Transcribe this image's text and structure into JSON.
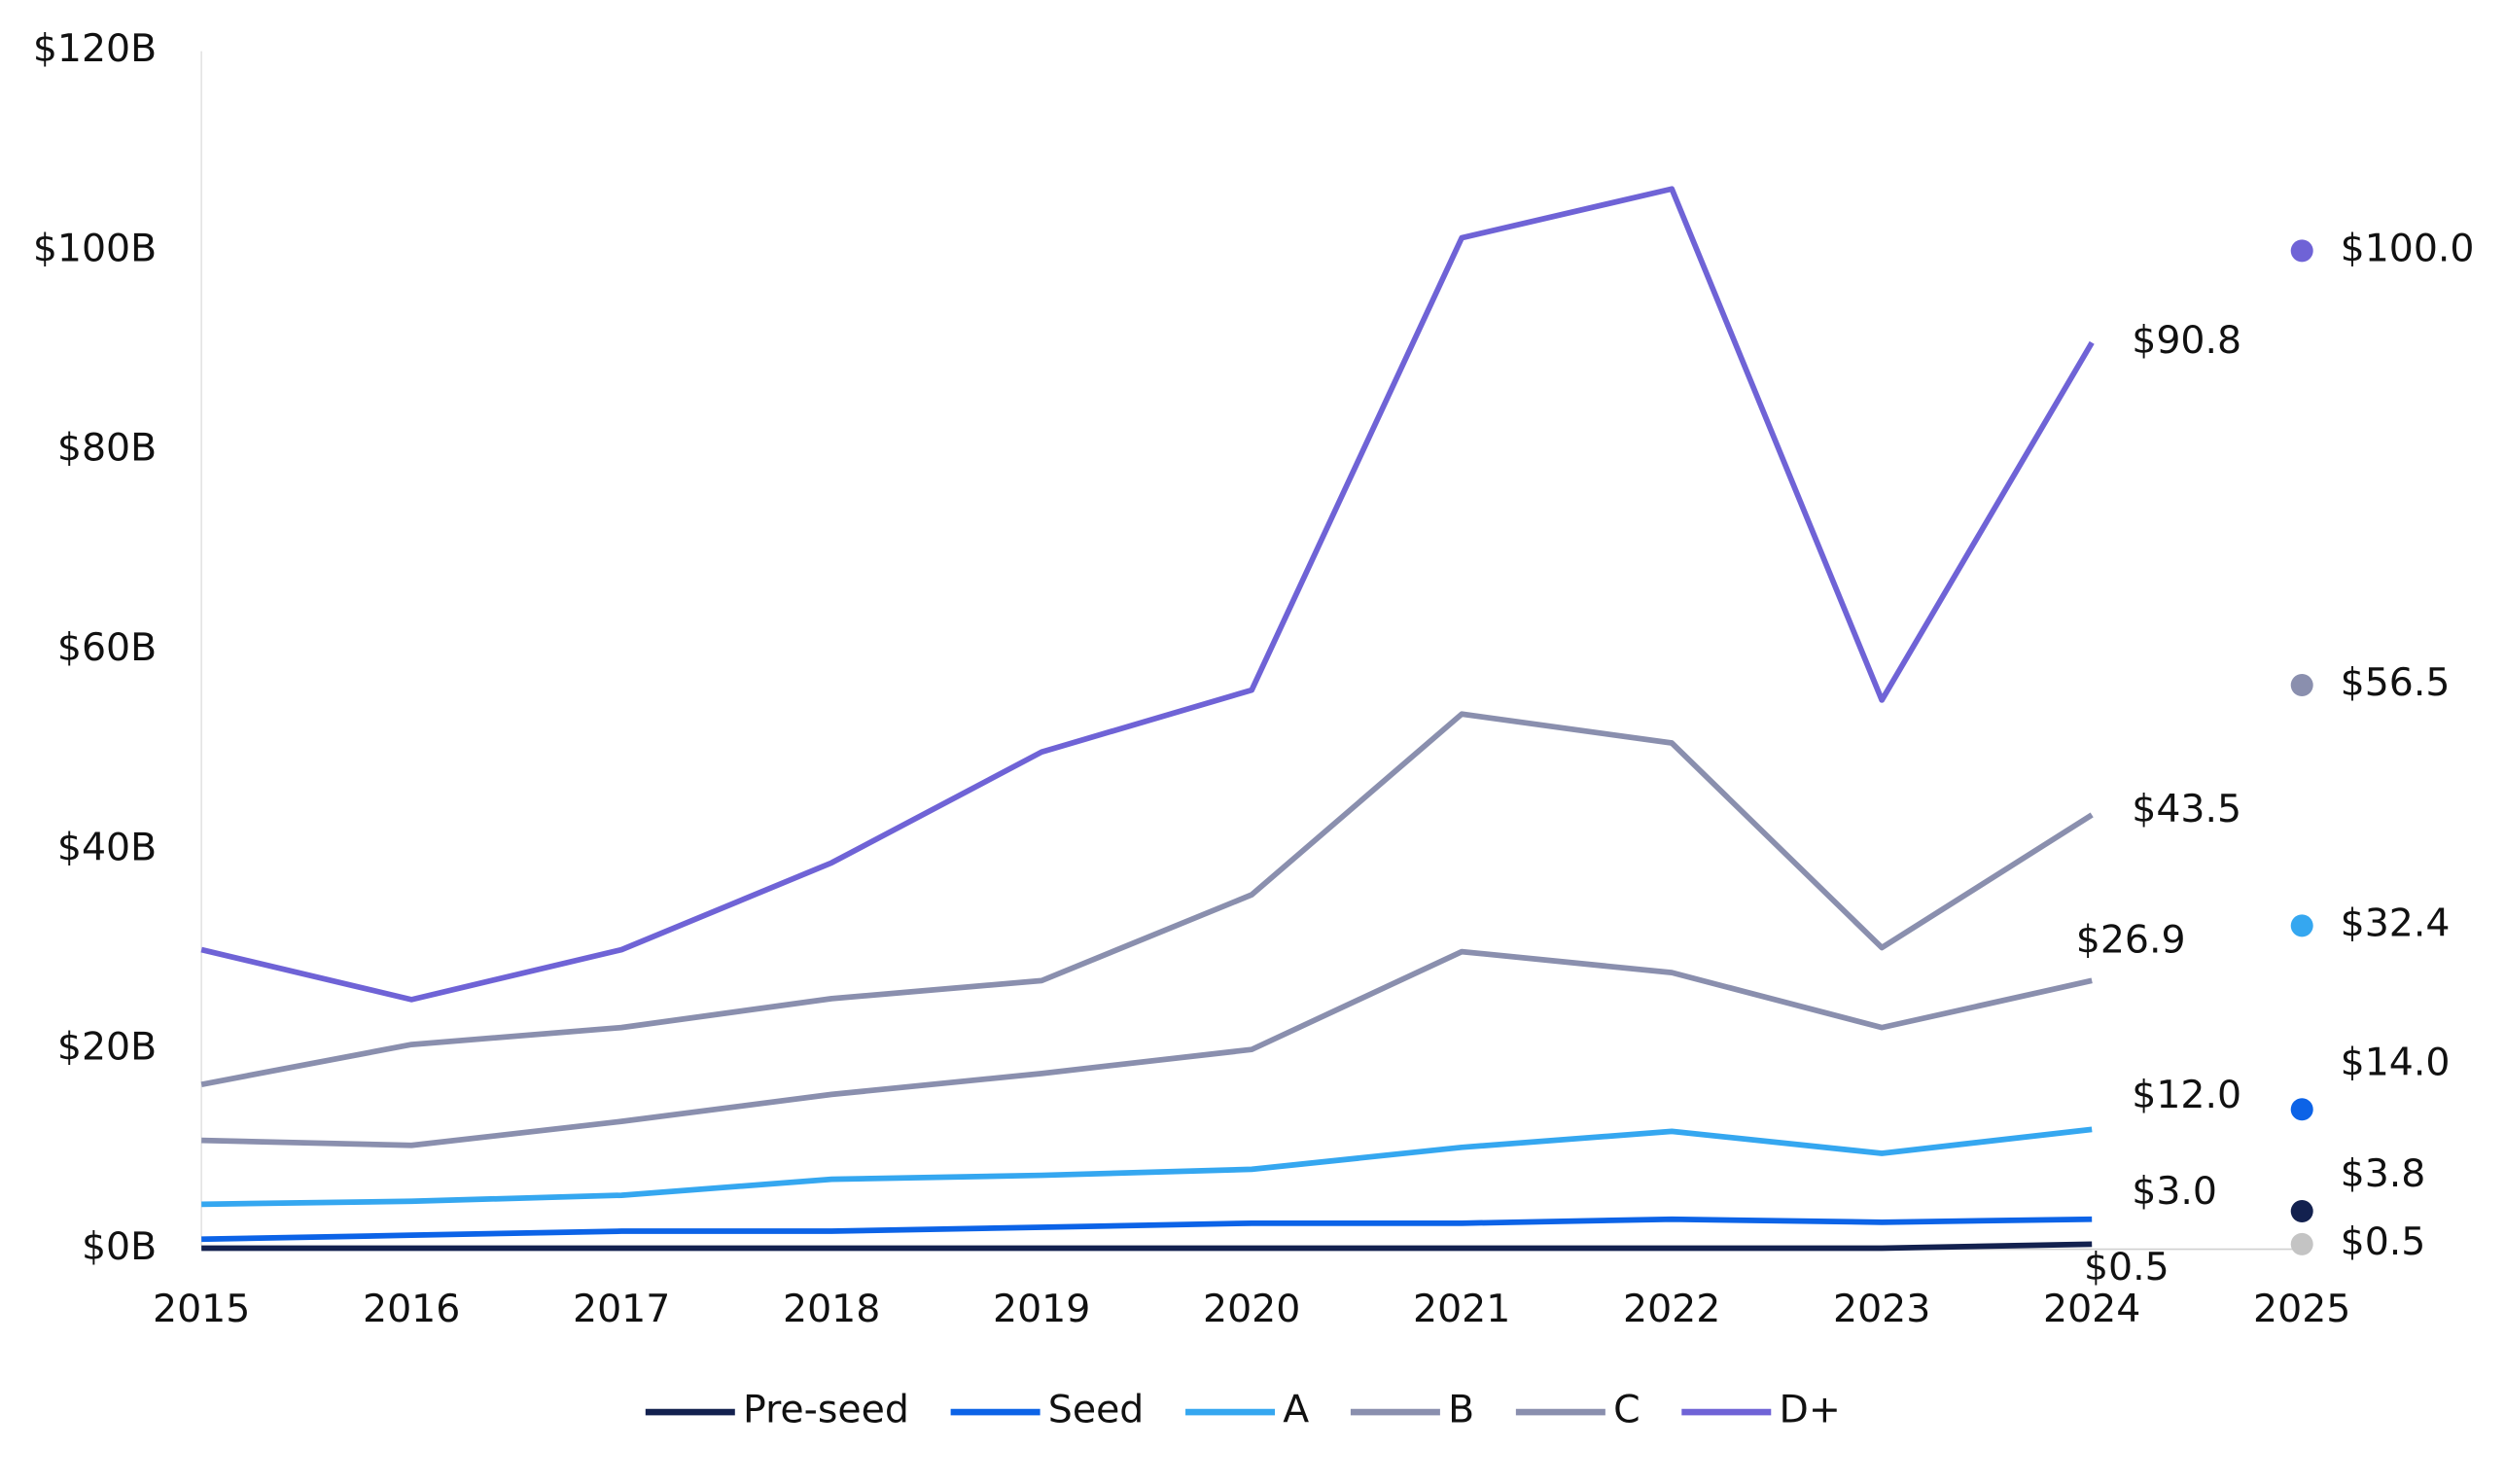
{
  "chart_data": {
    "type": "line",
    "x": [
      2015,
      2016,
      2017,
      2018,
      2019,
      2020,
      2021,
      2022,
      2023,
      2024
    ],
    "xlim": [
      2015,
      2025
    ],
    "xticks": [
      2015,
      2016,
      2017,
      2018,
      2019,
      2020,
      2021,
      2022,
      2023,
      2024,
      2025
    ],
    "ylim": [
      0,
      120
    ],
    "yticks": [
      {
        "value": 0,
        "label": "$0B"
      },
      {
        "value": 20,
        "label": "$20B"
      },
      {
        "value": 40,
        "label": "$40B"
      },
      {
        "value": 60,
        "label": "$60B"
      },
      {
        "value": 80,
        "label": "$80B"
      },
      {
        "value": 100,
        "label": "$100B"
      },
      {
        "value": 120,
        "label": "$120B"
      }
    ],
    "legend": "bottom",
    "series": [
      {
        "name": "Pre-seed",
        "color": "#13214f",
        "values": [
          0.1,
          0.1,
          0.1,
          0.1,
          0.1,
          0.1,
          0.1,
          0.1,
          0.1,
          0.5
        ],
        "value_labels": [
          null,
          null,
          null,
          null,
          null,
          null,
          null,
          null,
          null,
          "$0.5"
        ]
      },
      {
        "name": "Seed",
        "color": "#0c63e7",
        "values": [
          1.0,
          1.4,
          1.8,
          1.8,
          2.2,
          2.6,
          2.6,
          3.0,
          2.7,
          3.0
        ],
        "value_labels": [
          null,
          null,
          null,
          null,
          null,
          null,
          null,
          null,
          null,
          "$3.0"
        ]
      },
      {
        "name": "A",
        "color": "#35a7f0",
        "values": [
          4.5,
          4.8,
          5.4,
          7.0,
          7.4,
          8.0,
          10.2,
          11.8,
          9.6,
          12.0
        ],
        "value_labels": [
          null,
          null,
          null,
          null,
          null,
          null,
          null,
          null,
          null,
          "$12.0"
        ]
      },
      {
        "name": "B",
        "color": "#8a8fae",
        "values": [
          10.9,
          10.4,
          12.8,
          15.5,
          17.6,
          20.0,
          29.8,
          27.7,
          22.2,
          26.9
        ],
        "value_labels": [
          null,
          null,
          null,
          null,
          null,
          null,
          null,
          null,
          null,
          "$26.9"
        ]
      },
      {
        "name": "C",
        "color": "#8a8fae",
        "values": [
          16.5,
          20.5,
          22.2,
          25.1,
          26.9,
          35.5,
          53.6,
          50.7,
          30.2,
          43.5
        ],
        "value_labels": [
          null,
          null,
          null,
          null,
          null,
          null,
          null,
          null,
          null,
          "$43.5"
        ]
      },
      {
        "name": "D+",
        "color": "#6f63d6",
        "values": [
          30.0,
          25.0,
          30.0,
          38.7,
          49.8,
          56.0,
          101.3,
          106.2,
          55.0,
          90.8
        ],
        "value_labels": [
          null,
          null,
          null,
          null,
          null,
          null,
          null,
          null,
          null,
          "$90.8"
        ]
      }
    ],
    "points": {
      "x": 2025,
      "values": [
        100.0,
        56.5,
        32.4,
        14.0,
        3.8,
        0.5
      ],
      "value_labels": [
        "$100.0",
        "$56.5",
        "$32.4",
        "$14.0",
        "$3.8",
        "$0.5"
      ],
      "colors": [
        "#6f63d6",
        "#8a8fae",
        "#35a7f0",
        "#0c63e7",
        "#13214f",
        "#c4c4c4"
      ]
    }
  }
}
